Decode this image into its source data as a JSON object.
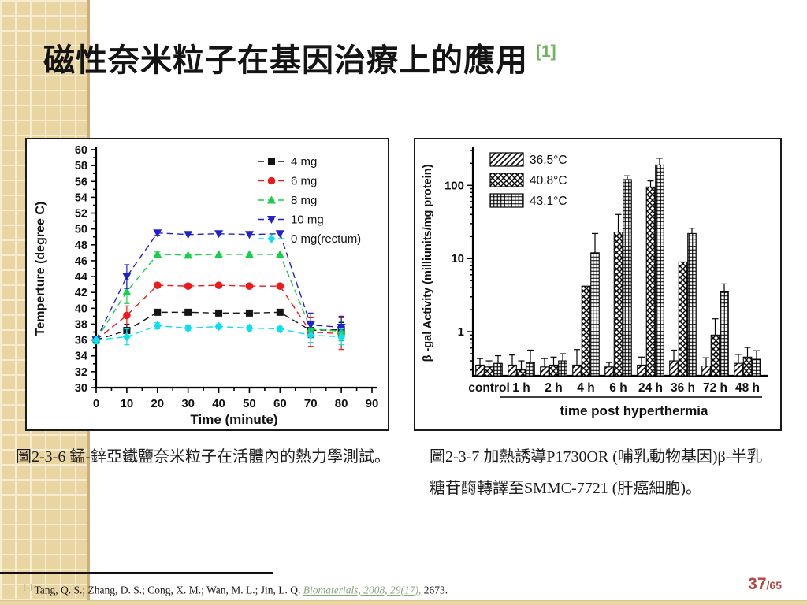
{
  "slide": {
    "title": "磁性奈米粒子在基因治療上的應用",
    "title_ref": "[1]",
    "page_current": "37",
    "page_total": "/65",
    "footer_marker": "[1]",
    "footer_authors": "Tang, Q. S.; Zhang, D. S.; Cong, X. M.; Wan, M. L.; Jin, L. Q. ",
    "footer_link": "Biomaterials, 2008, 29(17),",
    "footer_tail": " 2673."
  },
  "captions": {
    "left": "圖2-3-6 錳-鋅亞鐵鹽奈米粒子在活體內的熱力學測試。",
    "right_line1": "圖2-3-7 加熱誘導P1730OR (哺乳動物基因)β-半乳",
    "right_line2": "糖苷酶轉譯至SMMC-7721 (肝癌細胞)。"
  },
  "colors": {
    "strip_base": "#e9d5a1",
    "strip_grid": "#f5ecd2",
    "strip_edge": "#cbb179",
    "title_ref_green": "#74b35e",
    "footer_link_green": "#86a97c",
    "page_number_red": "#b4453f"
  },
  "chart_data": [
    {
      "type": "line",
      "title": "",
      "xlabel": "Time (minute)",
      "ylabel": "Temperture (degree C)",
      "xlim": [
        0,
        90
      ],
      "ylim": [
        30,
        60
      ],
      "xtick_step": 10,
      "ytick_step": 2,
      "legend_position": "top-right",
      "x": [
        0,
        10,
        20,
        30,
        40,
        50,
        60,
        70,
        80
      ],
      "series": [
        {
          "name": "4 mg",
          "color": "#141414",
          "marker": "square",
          "values": [
            36,
            37.2,
            39.5,
            39.5,
            39.4,
            39.4,
            39.5,
            37.2,
            37.3
          ],
          "err": [
            0.3,
            0.8,
            0.3,
            0.2,
            0.2,
            0.2,
            0.2,
            0.9,
            0.9
          ]
        },
        {
          "name": "6 mg",
          "color": "#ee1a1a",
          "marker": "circle",
          "values": [
            36,
            39.1,
            42.9,
            42.8,
            42.9,
            42.8,
            42.8,
            37.0,
            36.8
          ],
          "err": [
            0.3,
            1.2,
            0.3,
            0.2,
            0.2,
            0.2,
            0.2,
            1.8,
            2.0
          ]
        },
        {
          "name": "8 mg",
          "color": "#17cf4a",
          "marker": "triangle-up",
          "values": [
            36,
            42.1,
            46.8,
            46.7,
            46.8,
            46.8,
            46.8,
            37.4,
            37.1
          ],
          "err": [
            0.3,
            1.5,
            0.3,
            0.2,
            0.2,
            0.2,
            0.2,
            1.0,
            1.2
          ]
        },
        {
          "name": "10 mg",
          "color": "#2121cd",
          "marker": "triangle-down",
          "values": [
            36,
            44.0,
            49.5,
            49.3,
            49.4,
            49.3,
            49.4,
            37.9,
            37.6
          ],
          "err": [
            0.3,
            1.5,
            0.3,
            0.2,
            0.2,
            0.2,
            0.2,
            1.5,
            1.4
          ]
        },
        {
          "name": "0 mg(rectum)",
          "color": "#06e3ee",
          "marker": "diamond",
          "values": [
            36,
            36.4,
            37.8,
            37.5,
            37.7,
            37.5,
            37.4,
            36.6,
            36.4
          ],
          "err": [
            0.5,
            1.0,
            0.4,
            0.3,
            0.3,
            0.3,
            0.3,
            0.9,
            1.0
          ]
        }
      ]
    },
    {
      "type": "bar",
      "title": "",
      "xlabel": "time post hyperthermia",
      "ylabel": "β -gal Activity (milliunits/mg protein)",
      "yscale": "log",
      "ylim": [
        0.25,
        300
      ],
      "yticks": [
        1,
        10,
        100
      ],
      "legend_position": "top-left",
      "categories": [
        "control",
        "1 h",
        "2 h",
        "4 h",
        "6 h",
        "24 h",
        "36 h",
        "72 h",
        "48 h"
      ],
      "series": [
        {
          "name": "36.5°C",
          "pattern": "diagonal",
          "values": [
            0.35,
            0.35,
            0.33,
            0.35,
            0.33,
            0.35,
            0.4,
            0.34,
            0.37
          ],
          "err": [
            0.08,
            0.13,
            0.1,
            0.22,
            0.05,
            0.1,
            0.16,
            0.1,
            0.12
          ]
        },
        {
          "name": "40.8°C",
          "pattern": "crosshatch",
          "values": [
            0.33,
            0.3,
            0.35,
            4.2,
            23,
            95,
            9.0,
            0.9,
            0.45
          ],
          "err": [
            0.07,
            0.1,
            0.1,
            0,
            17,
            20,
            0,
            0.6,
            0.16
          ]
        },
        {
          "name": "43.1°C",
          "pattern": "grid",
          "values": [
            0.37,
            0.38,
            0.4,
            12,
            120,
            190,
            22,
            3.5,
            0.42
          ],
          "err": [
            0.1,
            0.18,
            0.1,
            10,
            15,
            45,
            4,
            1.0,
            0.13
          ]
        }
      ]
    }
  ]
}
